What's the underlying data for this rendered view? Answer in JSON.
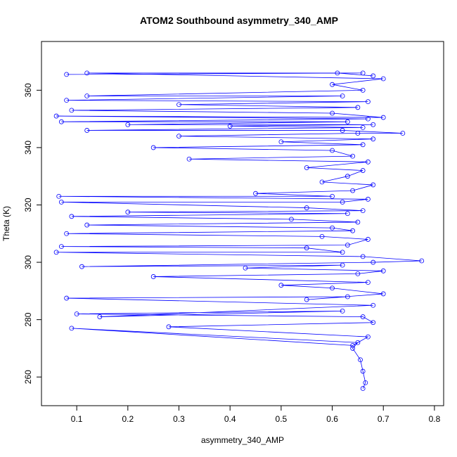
{
  "chart_data": {
    "type": "scatter",
    "title": "ATOM2 Southbound asymmetry_340_AMP",
    "x_label": "asymmetry_340_AMP",
    "y_label": "Theta (K)",
    "xlim": [
      0.031,
      0.818
    ],
    "ylim": [
      250,
      377
    ],
    "xticks": [
      0.1,
      0.2,
      0.3,
      0.4,
      0.5,
      0.6,
      0.7,
      0.8
    ],
    "yticks": [
      260,
      280,
      300,
      320,
      340,
      360
    ],
    "series": [
      {
        "color": "#0000ff",
        "x": [
          0.66,
          0.665,
          0.66,
          0.655,
          0.64,
          0.65,
          0.09,
          0.64,
          0.67,
          0.28,
          0.68,
          0.66,
          0.1,
          0.62,
          0.145,
          0.68,
          0.08,
          0.63,
          0.55,
          0.7,
          0.6,
          0.5,
          0.67,
          0.25,
          0.65,
          0.7,
          0.43,
          0.62,
          0.11,
          0.68,
          0.775,
          0.66,
          0.06,
          0.62,
          0.55,
          0.07,
          0.63,
          0.67,
          0.58,
          0.08,
          0.64,
          0.6,
          0.12,
          0.65,
          0.52,
          0.09,
          0.63,
          0.2,
          0.66,
          0.55,
          0.07,
          0.62,
          0.67,
          0.065,
          0.6,
          0.45,
          0.64,
          0.68,
          0.58,
          0.63,
          0.66,
          0.55,
          0.67,
          0.32,
          0.64,
          0.6,
          0.25,
          0.66,
          0.5,
          0.68,
          0.3,
          0.65,
          0.738,
          0.62,
          0.12,
          0.66,
          0.4,
          0.68,
          0.2,
          0.63,
          0.07,
          0.67,
          0.06,
          0.7,
          0.6,
          0.09,
          0.65,
          0.3,
          0.67,
          0.08,
          0.62,
          0.12,
          0.66,
          0.6,
          0.7,
          0.12,
          0.66,
          0.08,
          0.61,
          0.68
        ],
        "values": [
          256,
          258,
          262,
          266,
          270,
          272,
          277,
          271,
          274,
          277.5,
          279,
          281,
          282,
          283,
          281,
          285,
          287.5,
          288,
          287,
          289,
          291,
          292,
          293,
          295,
          296,
          297,
          298,
          299,
          298.5,
          300,
          300.5,
          302,
          303.5,
          303.5,
          305,
          305.5,
          306,
          308,
          309,
          310,
          311,
          312,
          313,
          314,
          315,
          316,
          317,
          317.5,
          318,
          319,
          321,
          321,
          322,
          323,
          323,
          324,
          325,
          327,
          328,
          330,
          332,
          333,
          335,
          336,
          337,
          339,
          340,
          341,
          342,
          343,
          344,
          345,
          345,
          346,
          346,
          347,
          347.5,
          348,
          348,
          349,
          349,
          350,
          351,
          350.5,
          352,
          353,
          354,
          355,
          356,
          356.5,
          358,
          358,
          360,
          362,
          364,
          366,
          366,
          365.5,
          366,
          365
        ]
      }
    ]
  }
}
